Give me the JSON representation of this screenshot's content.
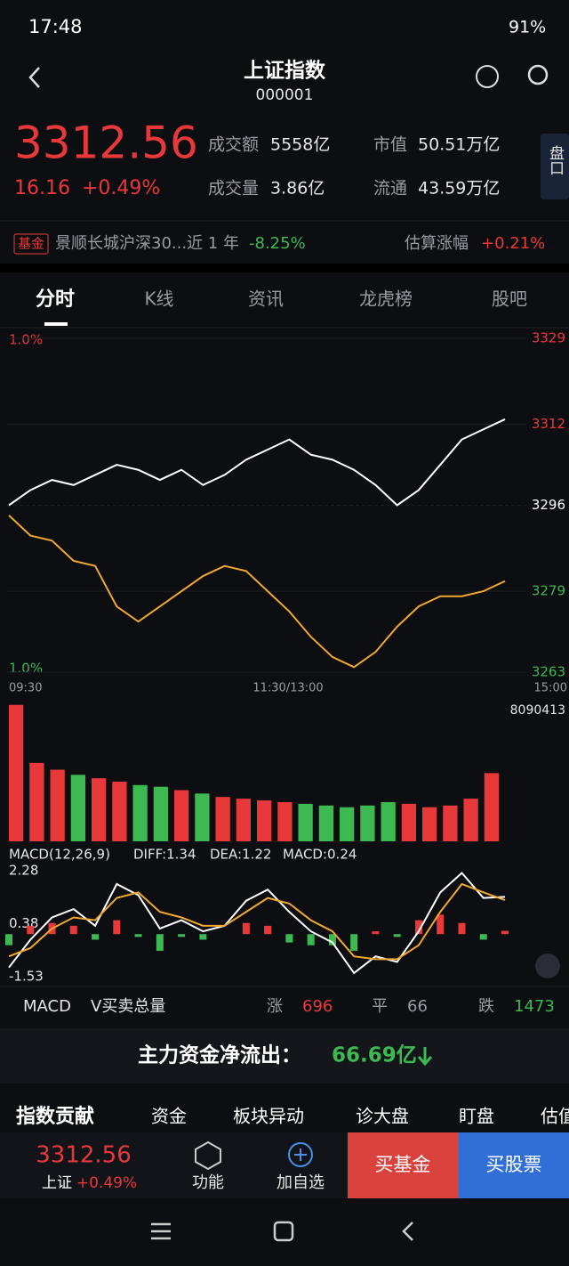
{
  "status": {
    "time": "17:48",
    "battery": "91%"
  },
  "header": {
    "title": "上证指数",
    "code": "000001"
  },
  "quote": {
    "price": "3312.56",
    "change": "16.16",
    "pct": "+0.49%",
    "panel": "盘口",
    "stats": [
      {
        "label": "成交额",
        "value": "5558亿"
      },
      {
        "label": "成交量",
        "value": "3.86亿"
      },
      {
        "label": "市值",
        "value": "50.51万亿"
      },
      {
        "label": "流通",
        "value": "43.59万亿"
      }
    ]
  },
  "fund": {
    "tag": "基金",
    "name": "景顺长城沪深30...近 1 年",
    "ret": "-8.25%",
    "est_label": "估算涨幅",
    "est": "+0.21%"
  },
  "tabs": [
    "分时",
    "K线",
    "资讯",
    "龙虎榜",
    "股吧"
  ],
  "intraday": {
    "type": "line",
    "pct_top": "1.0%",
    "pct_bottom": "1.0%",
    "ylim": [
      3263,
      3329
    ],
    "yticks": [
      3329,
      3312,
      3296,
      3279,
      3263
    ],
    "times": [
      "09:30",
      "11:30/13:00",
      "15:00"
    ],
    "series": [
      {
        "color": "#ffffff",
        "values": [
          3296,
          3299,
          3301,
          3300,
          3302,
          3304,
          3303,
          3301,
          3303,
          3300,
          3302,
          3305,
          3307,
          3309,
          3306,
          3305,
          3303,
          3300,
          3296,
          3299,
          3304,
          3309,
          3311,
          3313
        ]
      },
      {
        "color": "#f0a830",
        "values": [
          3294,
          3290,
          3289,
          3285,
          3284,
          3276,
          3273,
          3276,
          3279,
          3282,
          3284,
          3283,
          3279,
          3275,
          3270,
          3266,
          3264,
          3267,
          3272,
          3276,
          3278,
          3278,
          3279,
          3281
        ]
      }
    ]
  },
  "volume": {
    "type": "bar",
    "max_label": "8090413",
    "ylim": [
      0,
      8090413
    ],
    "values": [
      8000000,
      4600000,
      4200000,
      3900000,
      3700000,
      3500000,
      3300000,
      3200000,
      3000000,
      2800000,
      2600000,
      2500000,
      2400000,
      2300000,
      2200000,
      2100000,
      2000000,
      2100000,
      2300000,
      2200000,
      2000000,
      2100000,
      2500000,
      4000000
    ]
  },
  "macd": {
    "type": "line",
    "title": "MACD(12,26,9)",
    "diff_label": "DIFF:1.34",
    "dea_label": "DEA:1.22",
    "macd_label": "MACD:0.24",
    "ylim": [
      -1.53,
      2.28
    ],
    "yticks": [
      2.28,
      0.38,
      -1.53
    ],
    "diff": [
      -1.2,
      -0.2,
      0.6,
      0.9,
      0.3,
      1.8,
      1.4,
      0.2,
      0.5,
      0.1,
      0.3,
      1.2,
      1.6,
      0.8,
      0.1,
      -0.3,
      -1.4,
      -0.8,
      -1.0,
      0.1,
      1.5,
      2.2,
      1.3,
      1.34
    ],
    "dea": [
      -0.8,
      -0.5,
      0.2,
      0.6,
      0.5,
      1.3,
      1.5,
      0.8,
      0.6,
      0.3,
      0.3,
      0.8,
      1.3,
      1.1,
      0.5,
      0.1,
      -0.8,
      -0.9,
      -0.9,
      -0.4,
      0.8,
      1.8,
      1.5,
      1.22
    ],
    "hist": [
      -0.4,
      0.3,
      0.4,
      0.3,
      -0.2,
      0.5,
      -0.1,
      -0.6,
      -0.1,
      -0.2,
      0,
      0.4,
      0.3,
      -0.3,
      -0.4,
      -0.4,
      -0.6,
      0.1,
      -0.1,
      0.5,
      0.7,
      0.4,
      -0.2,
      0.12
    ]
  },
  "breadth": {
    "macd": "MACD",
    "vol": "V买卖总量",
    "up_label": "涨",
    "up": "696",
    "flat_label": "平",
    "flat": "66",
    "down_label": "跌",
    "down": "1473"
  },
  "flow": {
    "label": "主力资金净流出：",
    "value": "66.69亿"
  },
  "subtabs": [
    "指数贡献",
    "资金",
    "板块异动",
    "诊大盘",
    "盯盘",
    "估值"
  ],
  "bottom": {
    "price": "3312.56",
    "name": "上证",
    "pct": "+0.49%",
    "func": "功能",
    "add": "加自选",
    "buy_fund": "买基金",
    "buy_stock": "买股票"
  }
}
